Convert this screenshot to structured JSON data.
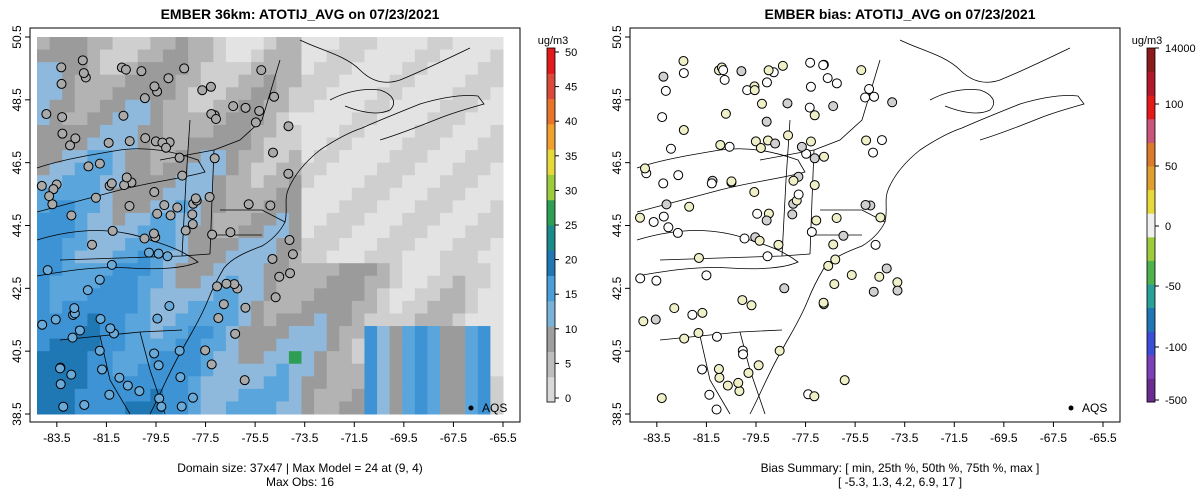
{
  "left": {
    "title": "EMBER 36km: ATOTIJ_AVG on 07/23/2021",
    "colorbar_unit": "ug/m3",
    "colorbar_ticks": [
      "0",
      "5",
      "10",
      "15",
      "20",
      "25",
      "30",
      "35",
      "40",
      "45",
      "50"
    ],
    "legend_label": "AQS",
    "footer_line1": "Domain size: 37x47 | Max Model = 24 at (9, 4)",
    "footer_line2": "Max Obs: 16"
  },
  "right": {
    "title": "EMBER bias: ATOTIJ_AVG on 07/23/2021",
    "colorbar_unit": "ug/m3",
    "colorbar_ticks": [
      "-500",
      "-100",
      "-50",
      "0",
      "50",
      "100",
      "14000"
    ],
    "legend_label": "AQS",
    "footer_line1": "Bias Summary: [ min, 25th %, 50th %, 75th %, max ]",
    "footer_line2": "[ -5.3,  1.3,  4.2,  6.9,  17 ]"
  },
  "axes": {
    "x_ticks": [
      "-83.5",
      "-81.5",
      "-79.5",
      "-77.5",
      "-75.5",
      "-73.5",
      "-71.5",
      "-69.5",
      "-67.5",
      "-65.5"
    ],
    "y_ticks": [
      "38.5",
      "40.5",
      "42.5",
      "44.5",
      "46.5",
      "48.5",
      "50.5"
    ]
  },
  "colors": {
    "model_scale": [
      "#d9d9d9",
      "#bdbdbd",
      "#9e9e9e",
      "#7ab3d8",
      "#4a9fd8",
      "#1f78b4",
      "#1b8a8a",
      "#2e9e55",
      "#9ccc3c",
      "#e6d93c",
      "#f0a030",
      "#e8732a",
      "#d94a3a",
      "#e31a1c"
    ],
    "bias_scale": [
      "#6a2d8f",
      "#7b3fb8",
      "#3b4fd6",
      "#1f78b4",
      "#2aa198",
      "#4db34d",
      "#9ccc3c",
      "#f0f0f0",
      "#e6d93c",
      "#e0a030",
      "#d97b2a",
      "#c9567a",
      "#e31a1c",
      "#b2182b",
      "#8b1a1a"
    ]
  }
}
